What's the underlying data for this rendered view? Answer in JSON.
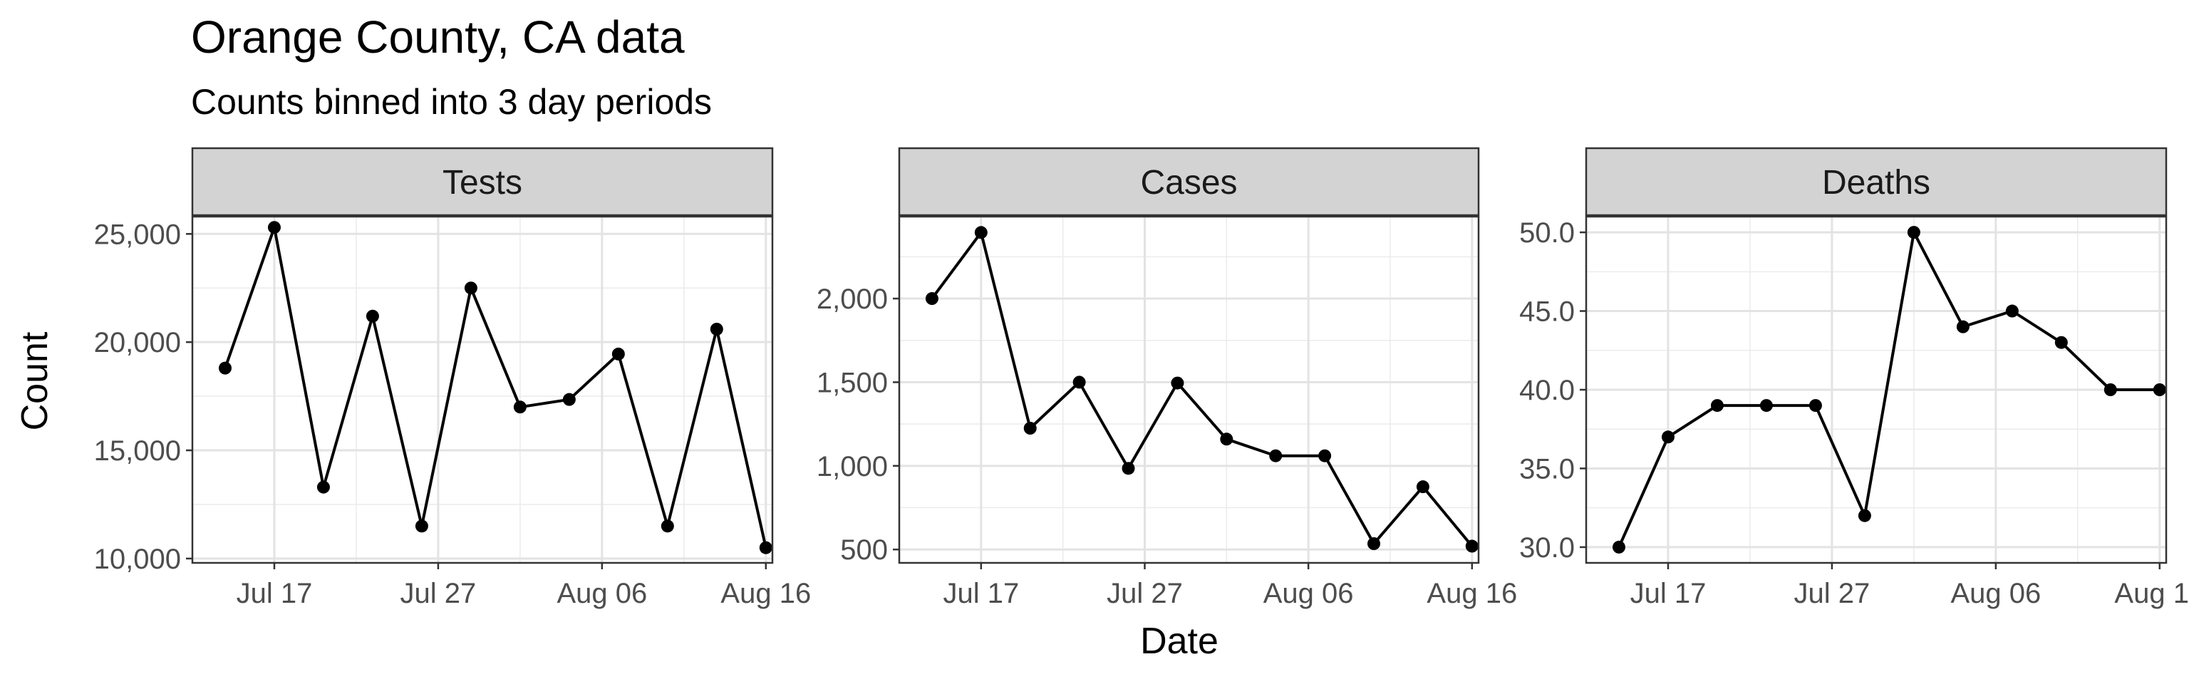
{
  "chart_data": {
    "type": "line",
    "title": "Orange County, CA data",
    "subtitle": "Counts binned into 3 day periods",
    "xlabel": "Date",
    "ylabel": "Count",
    "grid": true,
    "x": [
      "2020-07-14",
      "2020-07-17",
      "2020-07-20",
      "2020-07-23",
      "2020-07-26",
      "2020-07-29",
      "2020-08-01",
      "2020-08-04",
      "2020-08-07",
      "2020-08-10",
      "2020-08-13",
      "2020-08-16"
    ],
    "x_ticks": [
      "2020-07-17",
      "2020-07-27",
      "2020-08-06",
      "2020-08-16"
    ],
    "x_tick_labels": [
      "Jul 17",
      "Jul 27",
      "Aug 06",
      "Aug 16"
    ],
    "panels": [
      {
        "name": "Tests",
        "values": [
          18800,
          25300,
          13300,
          21200,
          11500,
          22500,
          17000,
          17350,
          19450,
          11500,
          20600,
          10500
        ],
        "ylim": [
          9800,
          25800
        ],
        "y_ticks": [
          10000,
          15000,
          20000,
          25000
        ],
        "y_tick_labels": [
          "10,000",
          "15,000",
          "20,000",
          "25,000"
        ]
      },
      {
        "name": "Cases",
        "values": [
          2000,
          2395,
          1225,
          1500,
          985,
          1495,
          1160,
          1060,
          1060,
          535,
          875,
          520
        ],
        "ylim": [
          420,
          2490
        ],
        "y_ticks": [
          500,
          1000,
          1500,
          2000
        ],
        "y_tick_labels": [
          "500",
          "1,000",
          "1,500",
          "2,000"
        ]
      },
      {
        "name": "Deaths",
        "values": [
          30,
          37,
          39,
          39,
          39,
          32,
          50,
          44,
          45,
          43,
          40,
          40
        ],
        "ylim": [
          29,
          51
        ],
        "y_ticks": [
          30,
          35,
          40,
          45,
          50
        ],
        "y_tick_labels": [
          "30.0",
          "35.0",
          "40.0",
          "45.0",
          "50.0"
        ]
      }
    ]
  }
}
